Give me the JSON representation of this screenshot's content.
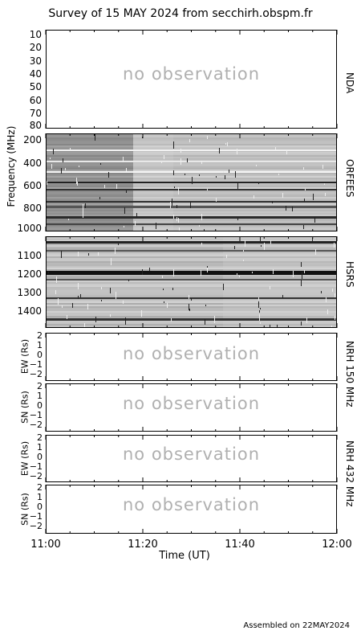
{
  "title": "Survey of 15 MAY 2024 from secchirh.obspm.fr",
  "footer": "Assembled on 22MAY2024",
  "chart_data": {
    "type": "heatmap",
    "title": "Survey of 15 MAY 2024 from secchirh.obspm.fr",
    "xlabel": "Time (UT)",
    "x_ticks": [
      "11:00",
      "11:20",
      "11:40",
      "12:00"
    ],
    "panels": [
      {
        "id": "nda",
        "instrument": "NDA",
        "y_ticks": [
          "10",
          "20",
          "30",
          "40",
          "50",
          "60",
          "70",
          "80"
        ],
        "message": "no observation"
      },
      {
        "id": "orfees",
        "instrument": "ORFEES",
        "y_ticks": [
          "200",
          "400",
          "600",
          "800",
          "1000"
        ],
        "ylim": [
          150,
          1000
        ],
        "message": ""
      },
      {
        "id": "hsrs",
        "instrument": "HSRS",
        "y_ticks": [
          "1100",
          "1200",
          "1300",
          "1400"
        ],
        "ylim": [
          1010,
          1480
        ],
        "message": ""
      },
      {
        "id": "nrh150ew",
        "ylabel": "EW (Rs)",
        "y_ticks": [
          "2",
          "1",
          "0",
          "−1",
          "−2"
        ],
        "message": "no observation"
      },
      {
        "id": "nrh150sn",
        "ylabel": "SN (Rs)",
        "y_ticks": [
          "2",
          "1",
          "0",
          "−1",
          "−2"
        ],
        "message": "no observation"
      },
      {
        "id": "nrh432ew",
        "ylabel": "EW (Rs)",
        "y_ticks": [
          "2",
          "1",
          "0",
          "−1",
          "−2"
        ],
        "message": "no observation"
      },
      {
        "id": "nrh432sn",
        "ylabel": "SN (Rs)",
        "y_ticks": [
          "2",
          "1",
          "0",
          "−1",
          "−2"
        ],
        "message": "no observation"
      }
    ],
    "frequency_label": "Frequency (MHz)",
    "nrh150_label": "NRH 150 MHz",
    "nrh432_label": "NRH 432 MHz"
  }
}
